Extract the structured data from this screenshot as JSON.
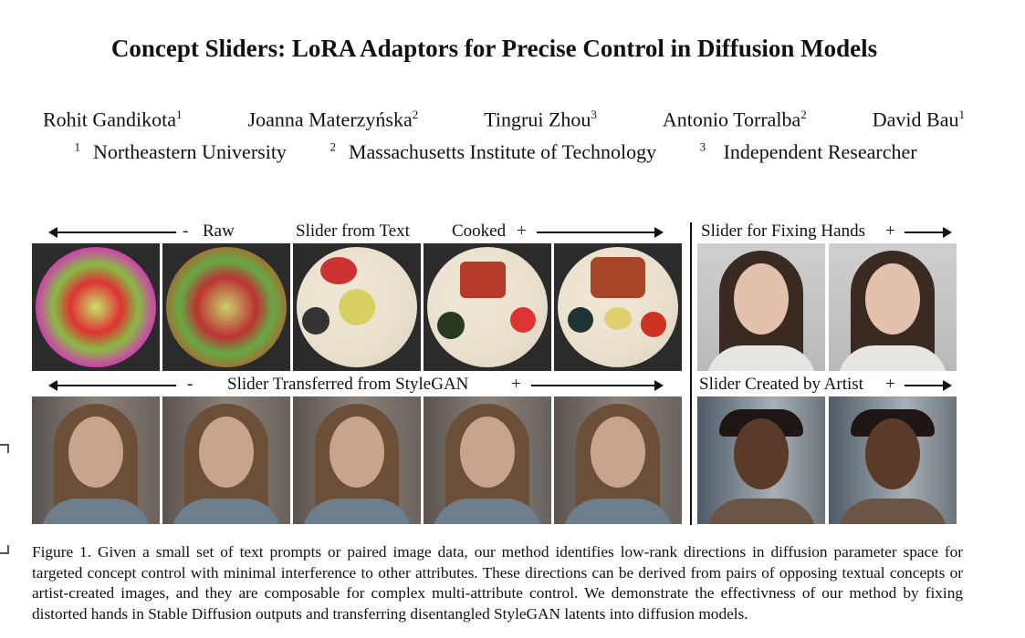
{
  "title": "Concept Sliders: LoRA Adaptors for Precise Control in Diffusion Models",
  "authors": [
    {
      "name": "Rohit Gandikota",
      "aff": "1"
    },
    {
      "name": "Joanna Materzyńska",
      "aff": "2"
    },
    {
      "name": "Tingrui Zhou",
      "aff": "3"
    },
    {
      "name": "Antonio Torralba",
      "aff": "2"
    },
    {
      "name": "David Bau",
      "aff": "1"
    }
  ],
  "affiliations": [
    {
      "num": "1",
      "name": "Northeastern University"
    },
    {
      "num": "2",
      "name": "Massachusetts Institute of Technology"
    },
    {
      "num": "3",
      "name": " Independent Researcher"
    }
  ],
  "figure": {
    "food_row": {
      "minus": "-",
      "left": "Raw",
      "center": "Slider from Text",
      "right": "Cooked",
      "plus": "+"
    },
    "face_row": {
      "minus": "-",
      "center": "Slider Transferred from StyleGAN",
      "plus": "+"
    },
    "hands": {
      "label": "Slider for Fixing Hands",
      "plus": "+"
    },
    "artist": {
      "label": "Slider Created by Artist",
      "plus": "+"
    }
  },
  "caption": "Figure 1. Given a small set of text prompts or paired image data, our method identifies low-rank directions in diffusion parameter space for targeted concept control with minimal interference to other attributes. These directions can be derived from pairs of opposing textual concepts or artist-created images, and they are composable for complex multi-attribute control. We demonstrate the effectivness of our method by fixing distorted hands in Stable Diffusion outputs and transferring disentangled StyleGAN latents into diffusion models."
}
